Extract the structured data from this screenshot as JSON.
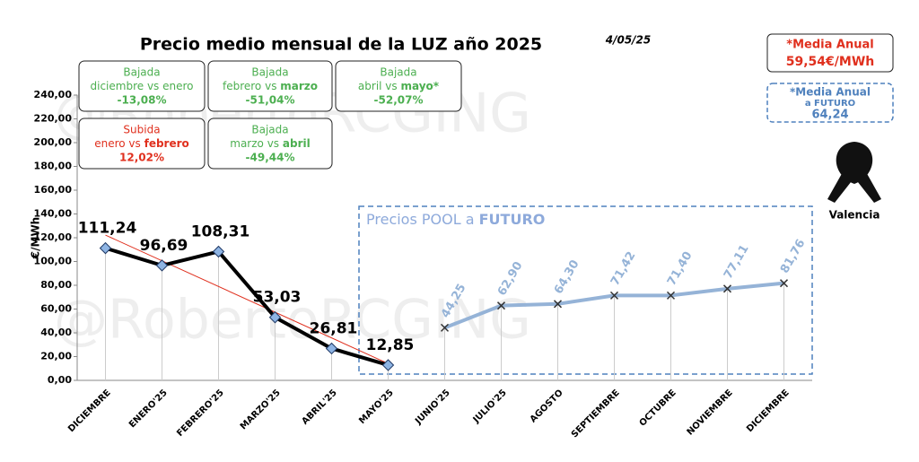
{
  "chart_data": {
    "type": "line",
    "title": "Precio medio mensual de la LUZ año 2025",
    "date": "4/05/25",
    "ylabel": "€/MWh",
    "watermark": "@RobertoRCGING",
    "categories": [
      "DICIEMBRE",
      "ENERO'25",
      "FEBRERO'25",
      "MARZO'25",
      "ABRIL'25",
      "MAYO'25",
      "JUNIO'25",
      "JULIO'25",
      "AGOSTO",
      "SEPTIEMBRE",
      "OCTUBRE",
      "NOVIEMBRE",
      "DICIEMBRE"
    ],
    "series": [
      {
        "color": "#000000",
        "marker_color": "#8eb4e3",
        "marker": "diamond",
        "trendline_color": "#e0301e",
        "values": [
          111.24,
          96.69,
          108.31,
          53.03,
          26.81,
          12.85,
          null,
          null,
          null,
          null,
          null,
          null,
          null
        ],
        "value_labels": [
          "111,24",
          "96,69",
          "108,31",
          "53,03",
          "26,81",
          "12,85",
          null,
          null,
          null,
          null,
          null,
          null,
          null
        ]
      },
      {
        "color": "#95b3d7",
        "marker_color": "#333333",
        "marker": "cross",
        "values": [
          null,
          null,
          null,
          null,
          null,
          null,
          44.25,
          62.9,
          64.3,
          71.42,
          71.4,
          77.11,
          81.76
        ],
        "value_labels": [
          null,
          null,
          null,
          null,
          null,
          null,
          "44,25",
          "62,90",
          "64,30",
          "71,42",
          "71,40",
          "77,11",
          "81,76"
        ]
      }
    ],
    "trendline": true,
    "ylim": [
      0,
      240
    ],
    "yticks": [
      {
        "value": 0,
        "label": "0,00"
      },
      {
        "value": 20,
        "label": "20,00"
      },
      {
        "value": 40,
        "label": "40,00"
      },
      {
        "value": 60,
        "label": "60,00"
      },
      {
        "value": 80,
        "label": "80,00"
      },
      {
        "value": 100,
        "label": "100,00"
      },
      {
        "value": 120,
        "label": "120,00"
      },
      {
        "value": 140,
        "label": "140,00"
      },
      {
        "value": 160,
        "label": "160,00"
      },
      {
        "value": 180,
        "label": "180,00"
      },
      {
        "value": 200,
        "label": "200,00"
      },
      {
        "value": 220,
        "label": "220,00"
      },
      {
        "value": 240,
        "label": "240,00"
      }
    ],
    "future_box": {
      "text": "Precios POOL a ",
      "emph": "FUTURO",
      "color": "#4f81bd"
    },
    "boxes": [
      {
        "title": "Bajada",
        "text": "diciembre vs enero",
        "emph": null,
        "value": "-13,08%",
        "color": "#4caf50"
      },
      {
        "title": "Bajada",
        "text": "febrero vs ",
        "emph": "marzo",
        "value": "-51,04%",
        "color": "#4caf50"
      },
      {
        "title": "Bajada",
        "text": "abril vs ",
        "emph": "mayo*",
        "value": "-52,07%",
        "color": "#4caf50"
      },
      {
        "title": "Subida",
        "text": "enero vs ",
        "emph": "febrero",
        "value": "12,02%",
        "color": "#e0301e"
      },
      {
        "title": "Bajada",
        "text": "marzo vs ",
        "emph": "abril",
        "value": "-49,44%",
        "color": "#4caf50"
      }
    ],
    "annual": {
      "label": "*Media Anual",
      "value": "59,54€/MWh",
      "color": "#e0301e"
    },
    "annual_future": {
      "label": "*Media Anual",
      "sub": "a FUTURO",
      "value": "64,24",
      "color": "#4f81bd"
    },
    "location": "Valencia"
  }
}
